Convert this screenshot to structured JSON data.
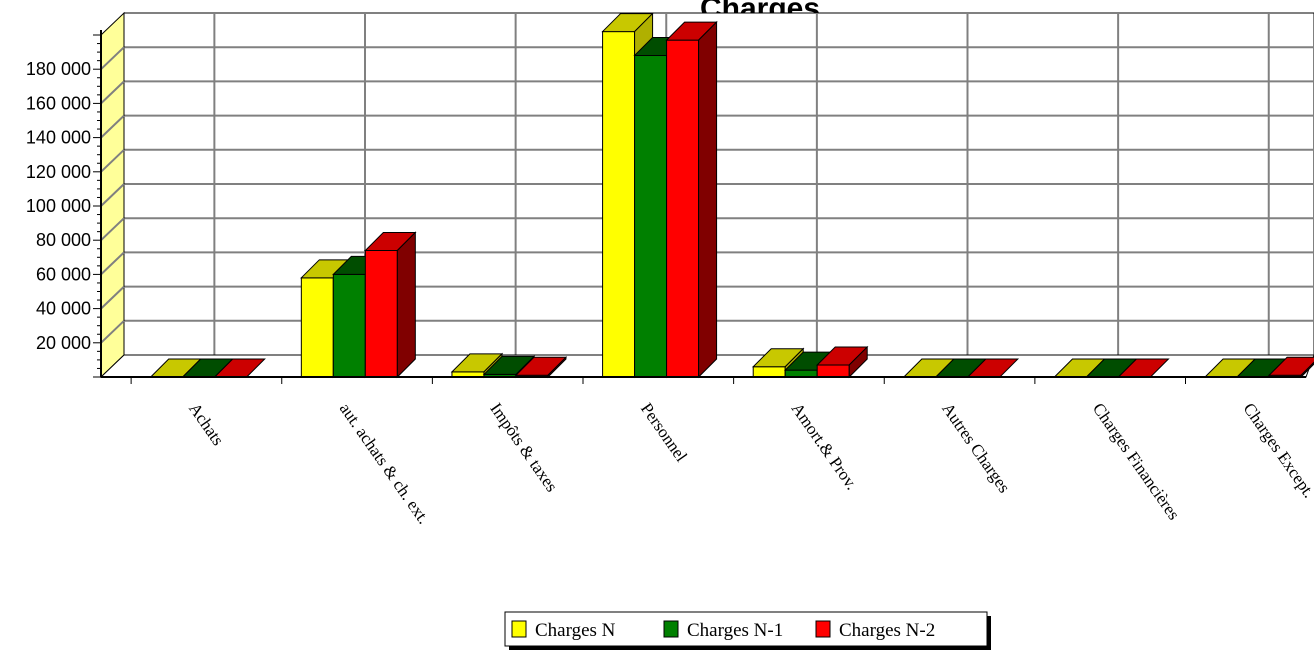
{
  "chart_data": {
    "type": "bar",
    "title": "Charges",
    "categories": [
      "Achats",
      "aut. achats & ch. ext.",
      "Impôts & taxes",
      "Personnel",
      "Amort.& Prov.",
      "Autres Charges",
      "Charges Financières",
      "Charges Except."
    ],
    "series": [
      {
        "name": "Charges N",
        "values": [
          0,
          58000,
          3000,
          202000,
          6000,
          0,
          0,
          0
        ],
        "color": "#ffff00",
        "top_color": "#c8c800",
        "side_color": "#b0b000"
      },
      {
        "name": "Charges N-1",
        "values": [
          0,
          60000,
          1500,
          188000,
          4000,
          0,
          0,
          0
        ],
        "color": "#008000",
        "top_color": "#004d00",
        "side_color": "#004000"
      },
      {
        "name": "Charges N-2",
        "values": [
          0,
          74000,
          1000,
          197000,
          7000,
          0,
          0,
          1000
        ],
        "color": "#ff0000",
        "top_color": "#cc0000",
        "side_color": "#800000"
      }
    ],
    "yticks": [
      "20 000",
      "40 000",
      "60 000",
      "80 000",
      "100 000",
      "120 000",
      "140 000",
      "160 000",
      "180 000"
    ],
    "ylim": [
      0,
      200000
    ],
    "grid": true,
    "legend_position": "bottom"
  }
}
